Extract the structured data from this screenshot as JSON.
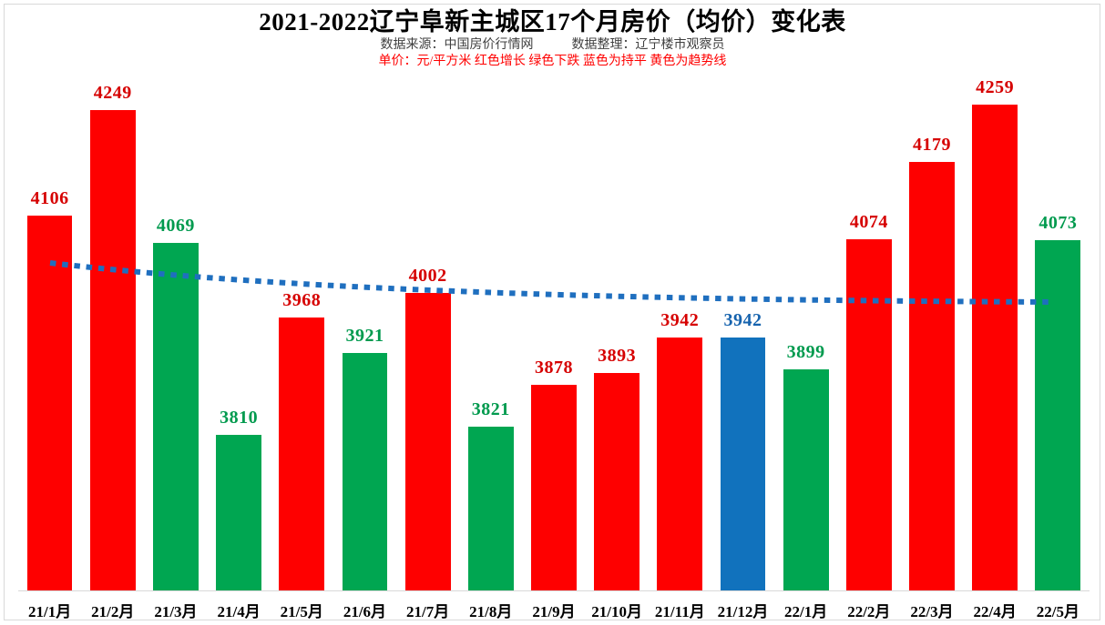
{
  "header": {
    "title": "2021-2022辽宁阜新主城区17个月房价（均价）变化表",
    "source_label": "数据来源：中国房价行情网",
    "editor_label": "数据整理：辽宁楼市观察员",
    "legend_note": "单价：元/平方米 红色增长 绿色下跌 蓝色为持平 黄色为趋势线"
  },
  "colors": {
    "increase": "#fe0000",
    "decrease": "#00a651",
    "flat": "#1172bd",
    "label_increase": "#d60000",
    "label_decrease": "#009a4e",
    "label_flat": "#1663ae",
    "trend": "#1f6fbf",
    "axis": "#d9d9d9",
    "note_red": "#ff0000",
    "subtitle_gray": "#3f3f3f"
  },
  "chart_data": {
    "type": "bar",
    "title": "2021-2022辽宁阜新主城区17个月房价（均价）变化表",
    "xlabel": "",
    "ylabel": "单价（元/平方米）",
    "categories": [
      "21/1月",
      "21/2月",
      "21/3月",
      "21/4月",
      "21/5月",
      "21/6月",
      "21/7月",
      "21/8月",
      "21/9月",
      "21/10月",
      "21/11月",
      "21/12月",
      "22/1月",
      "22/2月",
      "22/3月",
      "22/4月",
      "22/5月"
    ],
    "values": [
      4106,
      4249,
      4069,
      3810,
      3968,
      3921,
      4002,
      3821,
      3878,
      3893,
      3942,
      3942,
      3899,
      4074,
      4179,
      4259,
      4073
    ],
    "bar_roles": [
      "increase",
      "increase",
      "decrease",
      "decrease",
      "increase",
      "decrease",
      "increase",
      "decrease",
      "increase",
      "increase",
      "increase",
      "flat",
      "decrease",
      "increase",
      "increase",
      "increase",
      "decrease"
    ],
    "ylim": [
      3600,
      4290
    ],
    "grid": false,
    "legend_position": "none",
    "data_labels": true,
    "trend_line": {
      "style": "dotted",
      "color": "#1f6fbf",
      "description": "blue dotted moving-average trend line, declining from ~4060 level at 21/1月 then flattening near ~4000 through 22/5月"
    }
  }
}
